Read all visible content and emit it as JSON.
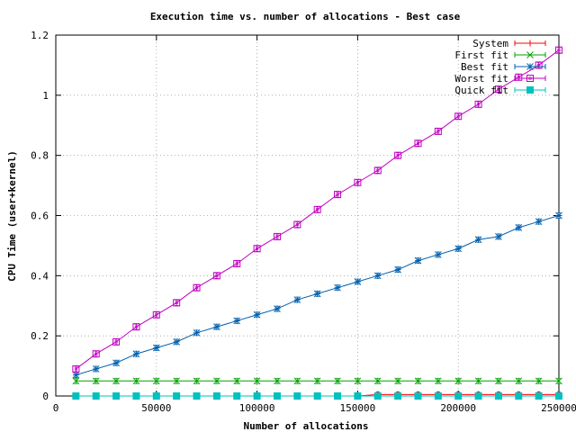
{
  "chart_data": {
    "type": "line",
    "title": "Execution time vs. number of allocations - Best case",
    "xlabel": "Number of allocations",
    "ylabel": "CPU Time (user+kernel)",
    "xlim": [
      0,
      250000
    ],
    "ylim": [
      0,
      1.2
    ],
    "xticks": [
      0,
      50000,
      100000,
      150000,
      200000,
      250000
    ],
    "yticks": [
      0,
      0.2,
      0.4,
      0.6,
      0.8,
      1,
      1.2
    ],
    "xtick_labels": [
      "0",
      "50000",
      "100000",
      "150000",
      "200000",
      "250000"
    ],
    "ytick_labels": [
      "0",
      "0.2",
      "0.4",
      "0.6",
      "0.8",
      "1",
      "1.2"
    ],
    "grid": true,
    "legend_position": "top-right",
    "error_bars": true,
    "series": [
      {
        "name": "System",
        "color": "#ff0000",
        "marker": "plus",
        "x": [
          10000,
          20000,
          30000,
          40000,
          50000,
          60000,
          70000,
          80000,
          90000,
          100000,
          110000,
          120000,
          130000,
          140000,
          150000,
          160000,
          170000,
          180000,
          190000,
          200000,
          210000,
          220000,
          230000,
          240000,
          250000
        ],
        "y": [
          0,
          0,
          0,
          0,
          0,
          0,
          0,
          0,
          0,
          0,
          0,
          0,
          0,
          0,
          0,
          0.005,
          0.005,
          0.005,
          0.005,
          0.005,
          0.005,
          0.005,
          0.005,
          0.005,
          0.005
        ]
      },
      {
        "name": "First fit",
        "color": "#00a000",
        "marker": "cross",
        "x": [
          10000,
          20000,
          30000,
          40000,
          50000,
          60000,
          70000,
          80000,
          90000,
          100000,
          110000,
          120000,
          130000,
          140000,
          150000,
          160000,
          170000,
          180000,
          190000,
          200000,
          210000,
          220000,
          230000,
          240000,
          250000
        ],
        "y": [
          0.05,
          0.05,
          0.05,
          0.05,
          0.05,
          0.05,
          0.05,
          0.05,
          0.05,
          0.05,
          0.05,
          0.05,
          0.05,
          0.05,
          0.05,
          0.05,
          0.05,
          0.05,
          0.05,
          0.05,
          0.05,
          0.05,
          0.05,
          0.05,
          0.05
        ]
      },
      {
        "name": "Best fit",
        "color": "#0060ad",
        "marker": "star",
        "x": [
          10000,
          20000,
          30000,
          40000,
          50000,
          60000,
          70000,
          80000,
          90000,
          100000,
          110000,
          120000,
          130000,
          140000,
          150000,
          160000,
          170000,
          180000,
          190000,
          200000,
          210000,
          220000,
          230000,
          240000,
          250000
        ],
        "y": [
          0.07,
          0.09,
          0.11,
          0.14,
          0.16,
          0.18,
          0.21,
          0.23,
          0.25,
          0.27,
          0.29,
          0.32,
          0.34,
          0.36,
          0.38,
          0.4,
          0.42,
          0.45,
          0.47,
          0.49,
          0.52,
          0.53,
          0.56,
          0.58,
          0.6
        ]
      },
      {
        "name": "Worst fit",
        "color": "#c000c0",
        "marker": "box",
        "x": [
          10000,
          20000,
          30000,
          40000,
          50000,
          60000,
          70000,
          80000,
          90000,
          100000,
          110000,
          120000,
          130000,
          140000,
          150000,
          160000,
          170000,
          180000,
          190000,
          200000,
          210000,
          220000,
          230000,
          240000,
          250000
        ],
        "y": [
          0.09,
          0.14,
          0.18,
          0.23,
          0.27,
          0.31,
          0.36,
          0.4,
          0.44,
          0.49,
          0.53,
          0.57,
          0.62,
          0.67,
          0.71,
          0.75,
          0.8,
          0.84,
          0.88,
          0.93,
          0.97,
          1.02,
          1.06,
          1.1,
          1.15
        ]
      },
      {
        "name": "Quick fit",
        "color": "#00c0c0",
        "marker": "filledbox",
        "x": [
          10000,
          20000,
          30000,
          40000,
          50000,
          60000,
          70000,
          80000,
          90000,
          100000,
          110000,
          120000,
          130000,
          140000,
          150000,
          160000,
          170000,
          180000,
          190000,
          200000,
          210000,
          220000,
          230000,
          240000,
          250000
        ],
        "y": [
          0,
          0,
          0,
          0,
          0,
          0,
          0,
          0,
          0,
          0,
          0,
          0,
          0,
          0,
          0,
          0,
          0,
          0,
          0,
          0,
          0,
          0,
          0,
          0,
          0
        ]
      }
    ]
  }
}
